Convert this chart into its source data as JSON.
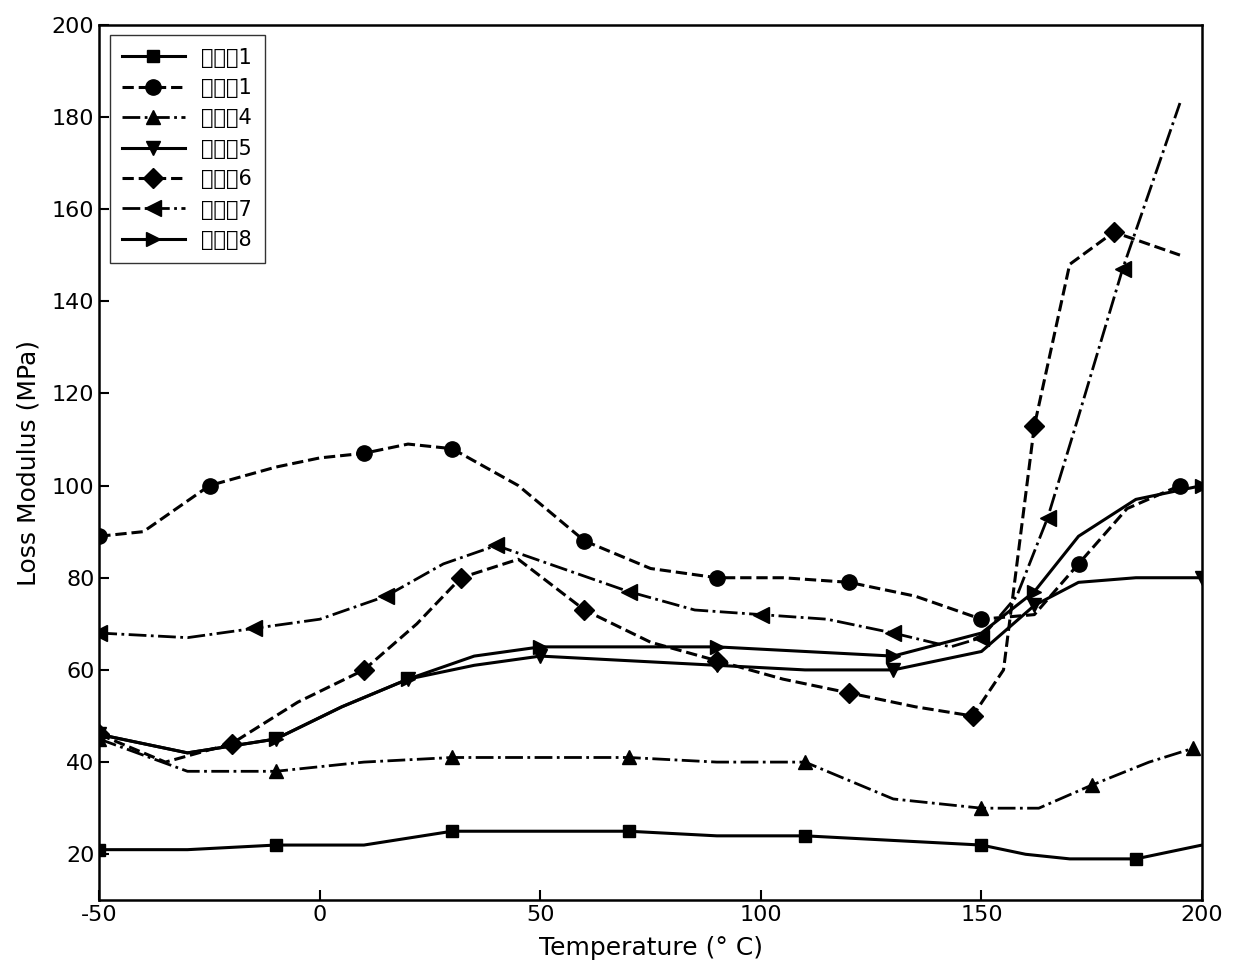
{
  "xlabel": "Temperature (° C)",
  "ylabel": "Loss Modulus (MPa)",
  "xlim": [
    -50,
    200
  ],
  "ylim": [
    10,
    200
  ],
  "yticks": [
    20,
    40,
    60,
    80,
    100,
    120,
    140,
    160,
    180,
    200
  ],
  "xticks": [
    -50,
    0,
    50,
    100,
    150,
    200
  ],
  "series": [
    {
      "label": "比较例1",
      "linestyle": "-",
      "marker": "s",
      "markersize": 9,
      "linewidth": 2.2,
      "x": [
        -50,
        -30,
        -10,
        10,
        30,
        50,
        70,
        90,
        110,
        130,
        150,
        160,
        170,
        185,
        200
      ],
      "y": [
        21,
        21,
        22,
        22,
        25,
        25,
        25,
        24,
        24,
        23,
        22,
        20,
        19,
        19,
        22
      ],
      "mk_x": [
        -50,
        -10,
        30,
        70,
        110,
        150,
        185
      ],
      "mk_y": [
        21,
        22,
        25,
        25,
        24,
        22,
        19
      ]
    },
    {
      "label": "实施例1",
      "linestyle": "--",
      "marker": "o",
      "markersize": 11,
      "linewidth": 2.2,
      "x": [
        -50,
        -40,
        -25,
        -10,
        0,
        10,
        20,
        30,
        45,
        60,
        75,
        90,
        105,
        120,
        135,
        150,
        162,
        172,
        183,
        195
      ],
      "y": [
        89,
        90,
        100,
        104,
        106,
        107,
        109,
        108,
        100,
        88,
        82,
        80,
        80,
        79,
        76,
        71,
        72,
        83,
        95,
        100
      ],
      "mk_x": [
        -50,
        -25,
        10,
        30,
        60,
        90,
        120,
        150,
        172,
        195
      ],
      "mk_y": [
        89,
        100,
        107,
        108,
        88,
        80,
        79,
        71,
        83,
        100
      ]
    },
    {
      "label": "比较例4",
      "linestyle": "-.",
      "marker": "^",
      "markersize": 10,
      "linewidth": 2.0,
      "x": [
        -50,
        -30,
        -10,
        10,
        30,
        50,
        70,
        90,
        110,
        130,
        150,
        163,
        175,
        188,
        198
      ],
      "y": [
        45,
        38,
        38,
        40,
        41,
        41,
        41,
        40,
        40,
        32,
        30,
        30,
        35,
        40,
        43
      ],
      "mk_x": [
        -50,
        -10,
        30,
        70,
        110,
        150,
        175,
        198
      ],
      "mk_y": [
        45,
        38,
        41,
        41,
        40,
        30,
        35,
        43
      ]
    },
    {
      "label": "比较例5",
      "linestyle": "-",
      "marker": "v",
      "markersize": 10,
      "linewidth": 2.2,
      "x": [
        -50,
        -30,
        -10,
        5,
        20,
        35,
        50,
        70,
        90,
        110,
        130,
        150,
        162,
        172,
        185,
        200
      ],
      "y": [
        46,
        42,
        45,
        52,
        58,
        61,
        63,
        62,
        61,
        60,
        60,
        64,
        74,
        79,
        80,
        80
      ],
      "mk_x": [
        -50,
        -10,
        20,
        50,
        90,
        130,
        162,
        200
      ],
      "mk_y": [
        46,
        45,
        58,
        63,
        61,
        60,
        74,
        80
      ]
    },
    {
      "label": "比较例6",
      "linestyle": "--",
      "marker": "D",
      "markersize": 10,
      "linewidth": 2.2,
      "x": [
        -50,
        -35,
        -20,
        -5,
        10,
        22,
        32,
        45,
        60,
        75,
        90,
        105,
        120,
        135,
        148,
        155,
        162,
        170,
        180,
        195
      ],
      "y": [
        46,
        40,
        44,
        53,
        60,
        70,
        80,
        84,
        73,
        66,
        62,
        58,
        55,
        52,
        50,
        60,
        113,
        148,
        155,
        150
      ],
      "mk_x": [
        -50,
        -20,
        10,
        32,
        60,
        90,
        120,
        148,
        162,
        180
      ],
      "mk_y": [
        46,
        44,
        60,
        80,
        73,
        62,
        55,
        50,
        113,
        155
      ]
    },
    {
      "label": "比较例7",
      "linestyle": "-.",
      "marker": "<",
      "markersize": 11,
      "linewidth": 2.0,
      "x": [
        -50,
        -30,
        -15,
        0,
        15,
        28,
        40,
        55,
        70,
        85,
        100,
        115,
        130,
        143,
        150,
        158,
        165,
        172,
        182,
        195
      ],
      "y": [
        68,
        67,
        69,
        71,
        76,
        83,
        87,
        82,
        77,
        73,
        72,
        71,
        68,
        65,
        67,
        76,
        93,
        115,
        147,
        183
      ],
      "mk_x": [
        -50,
        -15,
        15,
        40,
        70,
        100,
        130,
        150,
        165,
        182
      ],
      "mk_y": [
        68,
        69,
        76,
        87,
        77,
        72,
        68,
        67,
        93,
        147
      ]
    },
    {
      "label": "比较例8",
      "linestyle": "-",
      "marker": ">",
      "markersize": 10,
      "linewidth": 2.2,
      "x": [
        -50,
        -30,
        -10,
        5,
        20,
        35,
        50,
        70,
        90,
        110,
        130,
        150,
        162,
        172,
        185,
        200
      ],
      "y": [
        46,
        42,
        45,
        52,
        58,
        63,
        65,
        65,
        65,
        64,
        63,
        68,
        77,
        89,
        97,
        100
      ],
      "mk_x": [
        -50,
        -10,
        20,
        50,
        90,
        130,
        162,
        200
      ],
      "mk_y": [
        46,
        45,
        58,
        65,
        65,
        63,
        77,
        100
      ]
    }
  ],
  "legend_loc": "upper left",
  "background_color": "#ffffff",
  "font_color": "#000000",
  "label_fontsize": 18,
  "tick_fontsize": 16,
  "legend_fontsize": 15
}
